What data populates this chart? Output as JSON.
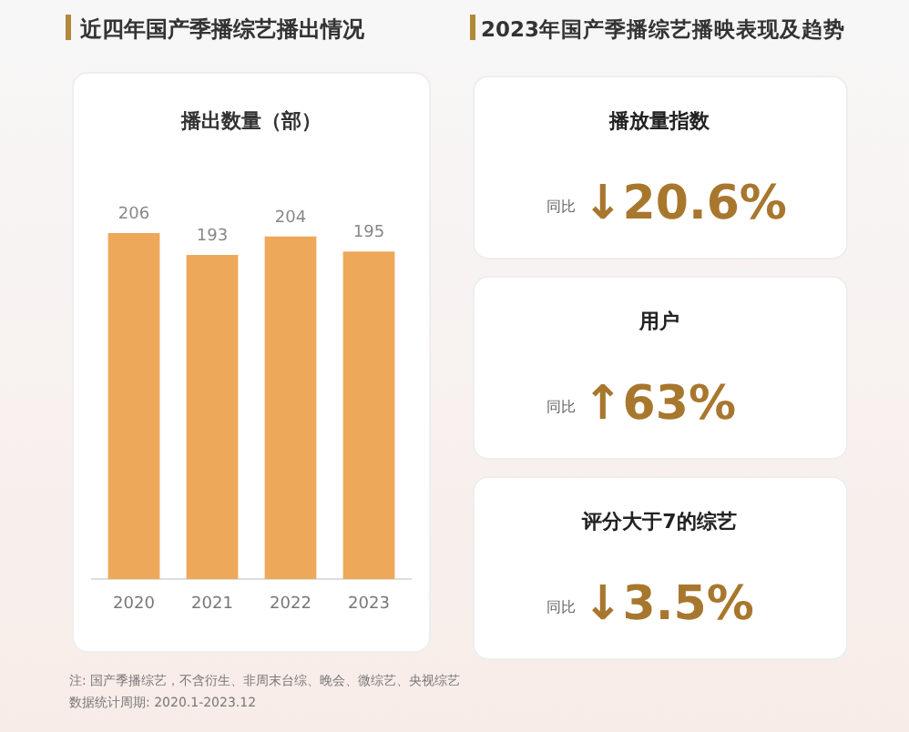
{
  "chart_data": [
    {
      "type": "bar",
      "title": "近四年国产季播综艺播出情况",
      "subtitle": "播出数量（部）",
      "categories": [
        "2020",
        "2021",
        "2022",
        "2023"
      ],
      "values": [
        206,
        193,
        204,
        195
      ],
      "color": "#eea85a",
      "data_labels": true,
      "annotations": [
        "注: 国产季播综艺，不含衍生、非周末台综、晚会、微综艺、央视综艺",
        "数据统计周期: 2020.1-2023.12"
      ]
    },
    {
      "type": "other",
      "title": "2023年国产季播综艺播映表现及趋势",
      "categories": [
        "播放量指数",
        "用户",
        "评分大于7的综艺"
      ],
      "color": "#a8772e",
      "annotations": [
        "同比",
        "↓20.6%",
        "同比",
        "↑63%",
        "同比",
        "↓3.5%"
      ]
    }
  ]
}
